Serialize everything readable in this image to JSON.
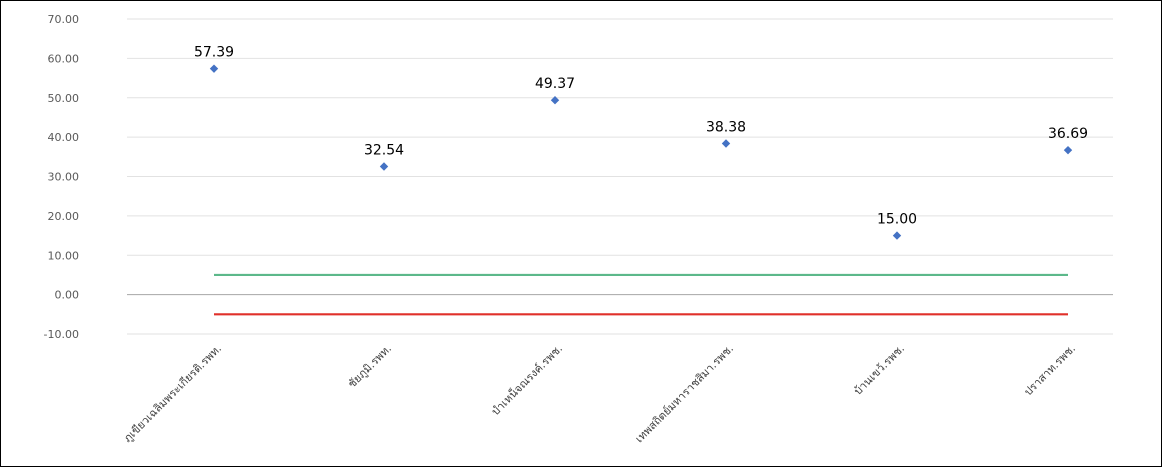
{
  "chart_data": {
    "type": "scatter",
    "categories": [
      "ภูเขียวเฉลิมพระเกียรติ.รพท.",
      "ชัยภูมิ.รพท.",
      "บำเหน็จณรงค์.รพช.",
      "เทพสถิตย์มหาราชสิมา.รพช.",
      "บ้านเขว้.รพช.",
      "ปราสาท.รพช."
    ],
    "values": [
      57.39,
      32.54,
      49.37,
      38.38,
      15.0,
      36.69
    ],
    "data_labels": [
      "57.39",
      "32.54",
      "49.37",
      "38.38",
      "15.00",
      "36.69"
    ],
    "ylim": [
      -10,
      70
    ],
    "yticks": [
      "70.00",
      "60.00",
      "50.00",
      "40.00",
      "30.00",
      "20.00",
      "10.00",
      "0.00",
      "-10.00"
    ],
    "grid": true,
    "reference_lines": [
      {
        "value": 5,
        "color": "#5cb88a"
      },
      {
        "value": -5,
        "color": "#e0302a"
      }
    ],
    "marker_color": "#4472c4",
    "title": "",
    "xlabel": "",
    "ylabel": ""
  }
}
